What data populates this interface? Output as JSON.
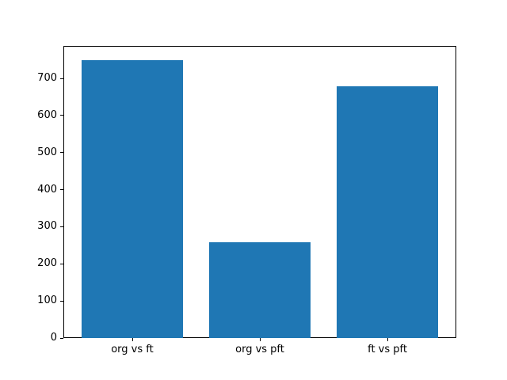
{
  "chart_data": {
    "type": "bar",
    "categories": [
      "org vs ft",
      "org vs pft",
      "ft vs pft"
    ],
    "values": [
      750,
      258,
      678
    ],
    "yticks": [
      0,
      100,
      200,
      300,
      400,
      500,
      600,
      700
    ],
    "ylim": [
      0,
      787.5
    ],
    "bar_color": "#1f77b4",
    "grid": false,
    "legend_position": "none",
    "title": "",
    "xlabel": "",
    "ylabel": ""
  }
}
